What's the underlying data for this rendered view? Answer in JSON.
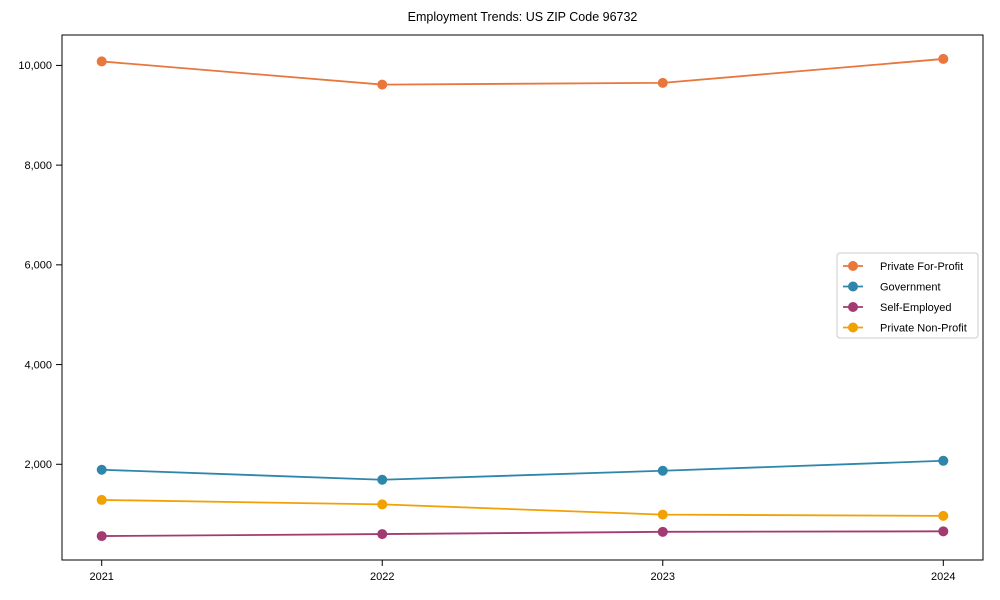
{
  "chart_data": {
    "type": "line",
    "title": "Employment Trends: US ZIP Code 96732",
    "x": [
      "2021",
      "2022",
      "2023",
      "2024"
    ],
    "series": [
      {
        "name": "Private For-Profit",
        "color": "#E8763D",
        "values": [
          10080,
          9615,
          9650,
          10130
        ]
      },
      {
        "name": "Government",
        "color": "#2E86AB",
        "values": [
          1890,
          1690,
          1870,
          2070
        ]
      },
      {
        "name": "Self-Employed",
        "color": "#A23B72",
        "values": [
          560,
          600,
          645,
          655
        ]
      },
      {
        "name": "Private Non-Profit",
        "color": "#F2A104",
        "values": [
          1285,
          1195,
          990,
          965
        ]
      }
    ],
    "yticks": [
      2000,
      4000,
      6000,
      8000,
      10000
    ],
    "ytick_labels": [
      "2,000",
      "4,000",
      "6,000",
      "8,000",
      "10,000"
    ],
    "ylim": [
      80,
      10610
    ],
    "xlabel": "",
    "ylabel": "",
    "grid": false,
    "legend_position": "center-right",
    "marker": "circle",
    "axis_color": "#000000",
    "legend_border_color": "#cccccc",
    "background_color": "#ffffff"
  }
}
